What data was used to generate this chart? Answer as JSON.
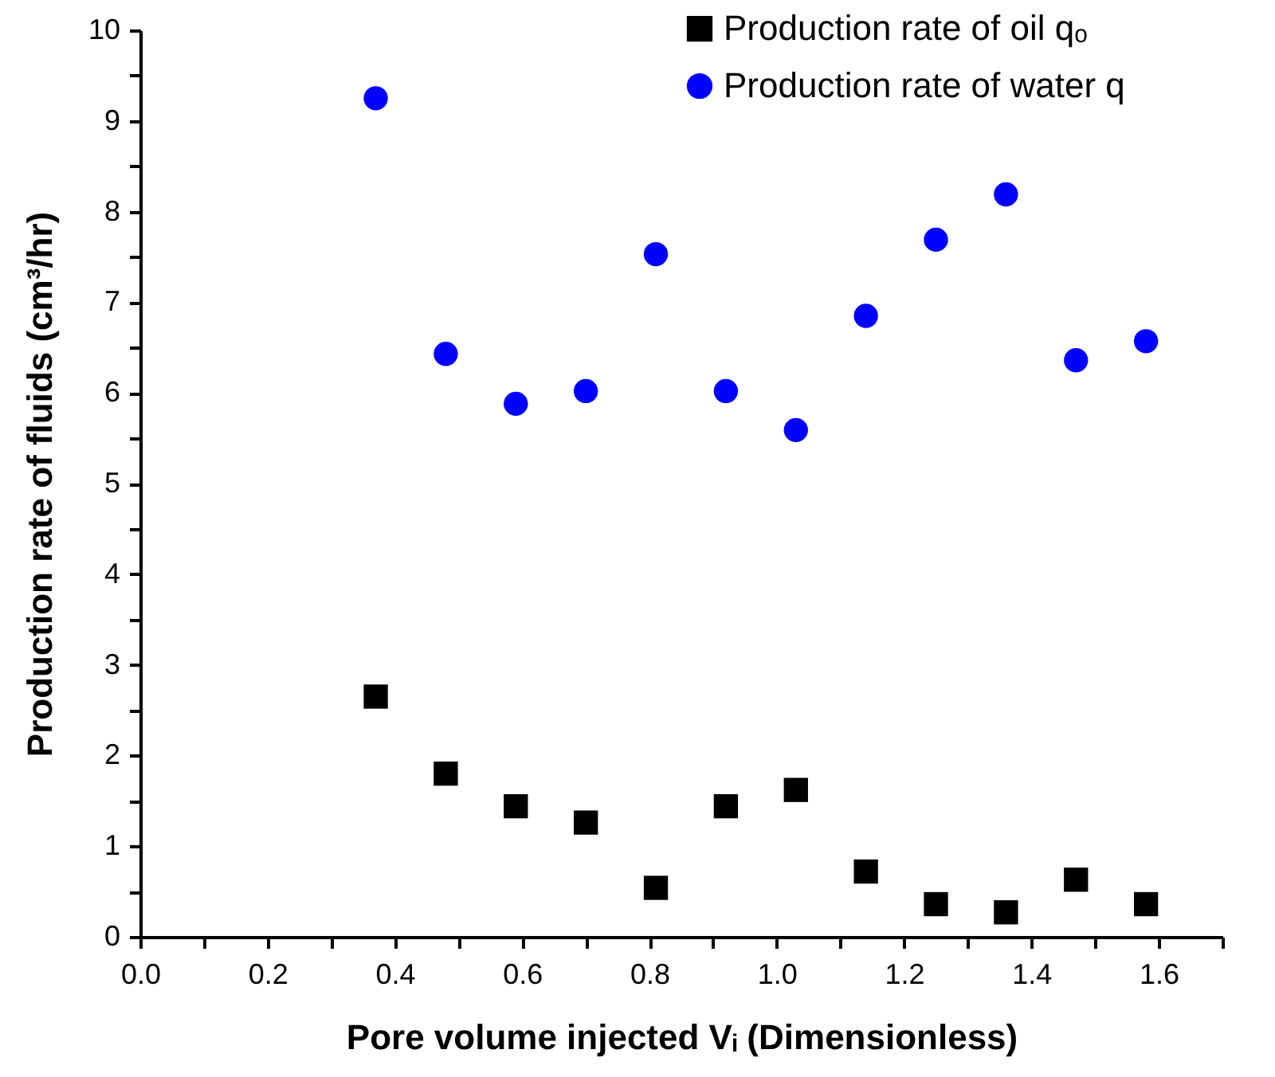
{
  "chart_data": {
    "type": "scatter",
    "xlabel": "Pore volume injected Vᵢ (Dimensionless)",
    "ylabel": "Production rate of fluids (cm³/hr)",
    "x": [
      0.37,
      0.48,
      0.59,
      0.7,
      0.81,
      0.92,
      1.03,
      1.14,
      1.25,
      1.36,
      1.47,
      1.58
    ],
    "series": [
      {
        "name": "Production rate of oil qₒ",
        "color": "#000000",
        "marker": "square",
        "values": [
          2.65,
          1.8,
          1.44,
          1.26,
          0.54,
          1.44,
          1.62,
          0.72,
          0.36,
          0.27,
          0.63,
          0.36
        ]
      },
      {
        "name": "Production rate of water q",
        "color": "#0000ff",
        "marker": "circle",
        "values": [
          9.25,
          6.43,
          5.88,
          6.02,
          7.53,
          6.02,
          5.59,
          6.85,
          7.69,
          8.19,
          6.36,
          6.57
        ]
      }
    ],
    "xlim": [
      0,
      1.7
    ],
    "xticks": [
      {
        "value": 0,
        "label": "0.0"
      },
      {
        "value": 0.1,
        "label": null
      },
      {
        "value": 0.2,
        "label": "0.2"
      },
      {
        "value": 0.3,
        "label": null
      },
      {
        "value": 0.4,
        "label": "0.4"
      },
      {
        "value": 0.5,
        "label": null
      },
      {
        "value": 0.6,
        "label": "0.6"
      },
      {
        "value": 0.7,
        "label": null
      },
      {
        "value": 0.8,
        "label": "0.8"
      },
      {
        "value": 0.9,
        "label": null
      },
      {
        "value": 1.0,
        "label": "1.0"
      },
      {
        "value": 1.1,
        "label": null
      },
      {
        "value": 1.2,
        "label": "1.2"
      },
      {
        "value": 1.3,
        "label": null
      },
      {
        "value": 1.4,
        "label": "1.4"
      },
      {
        "value": 1.5,
        "label": null
      },
      {
        "value": 1.6,
        "label": "1.6"
      },
      {
        "value": 1.7,
        "label": null
      }
    ],
    "ylim": [
      0,
      10
    ],
    "yticks": [
      0,
      {
        "value": 0.5,
        "label": null
      },
      1,
      {
        "value": 1.5,
        "label": null
      },
      2,
      {
        "value": 2.5,
        "label": null
      },
      3,
      {
        "value": 3.5,
        "label": null
      },
      4,
      {
        "value": 4.5,
        "label": null
      },
      5,
      {
        "value": 5.5,
        "label": null
      },
      6,
      {
        "value": 6.5,
        "label": null
      },
      7,
      {
        "value": 7.5,
        "label": null
      },
      8,
      {
        "value": 8.5,
        "label": null
      },
      9,
      {
        "value": 9.5,
        "label": null
      },
      10
    ],
    "grid": false,
    "legend": "top right"
  }
}
